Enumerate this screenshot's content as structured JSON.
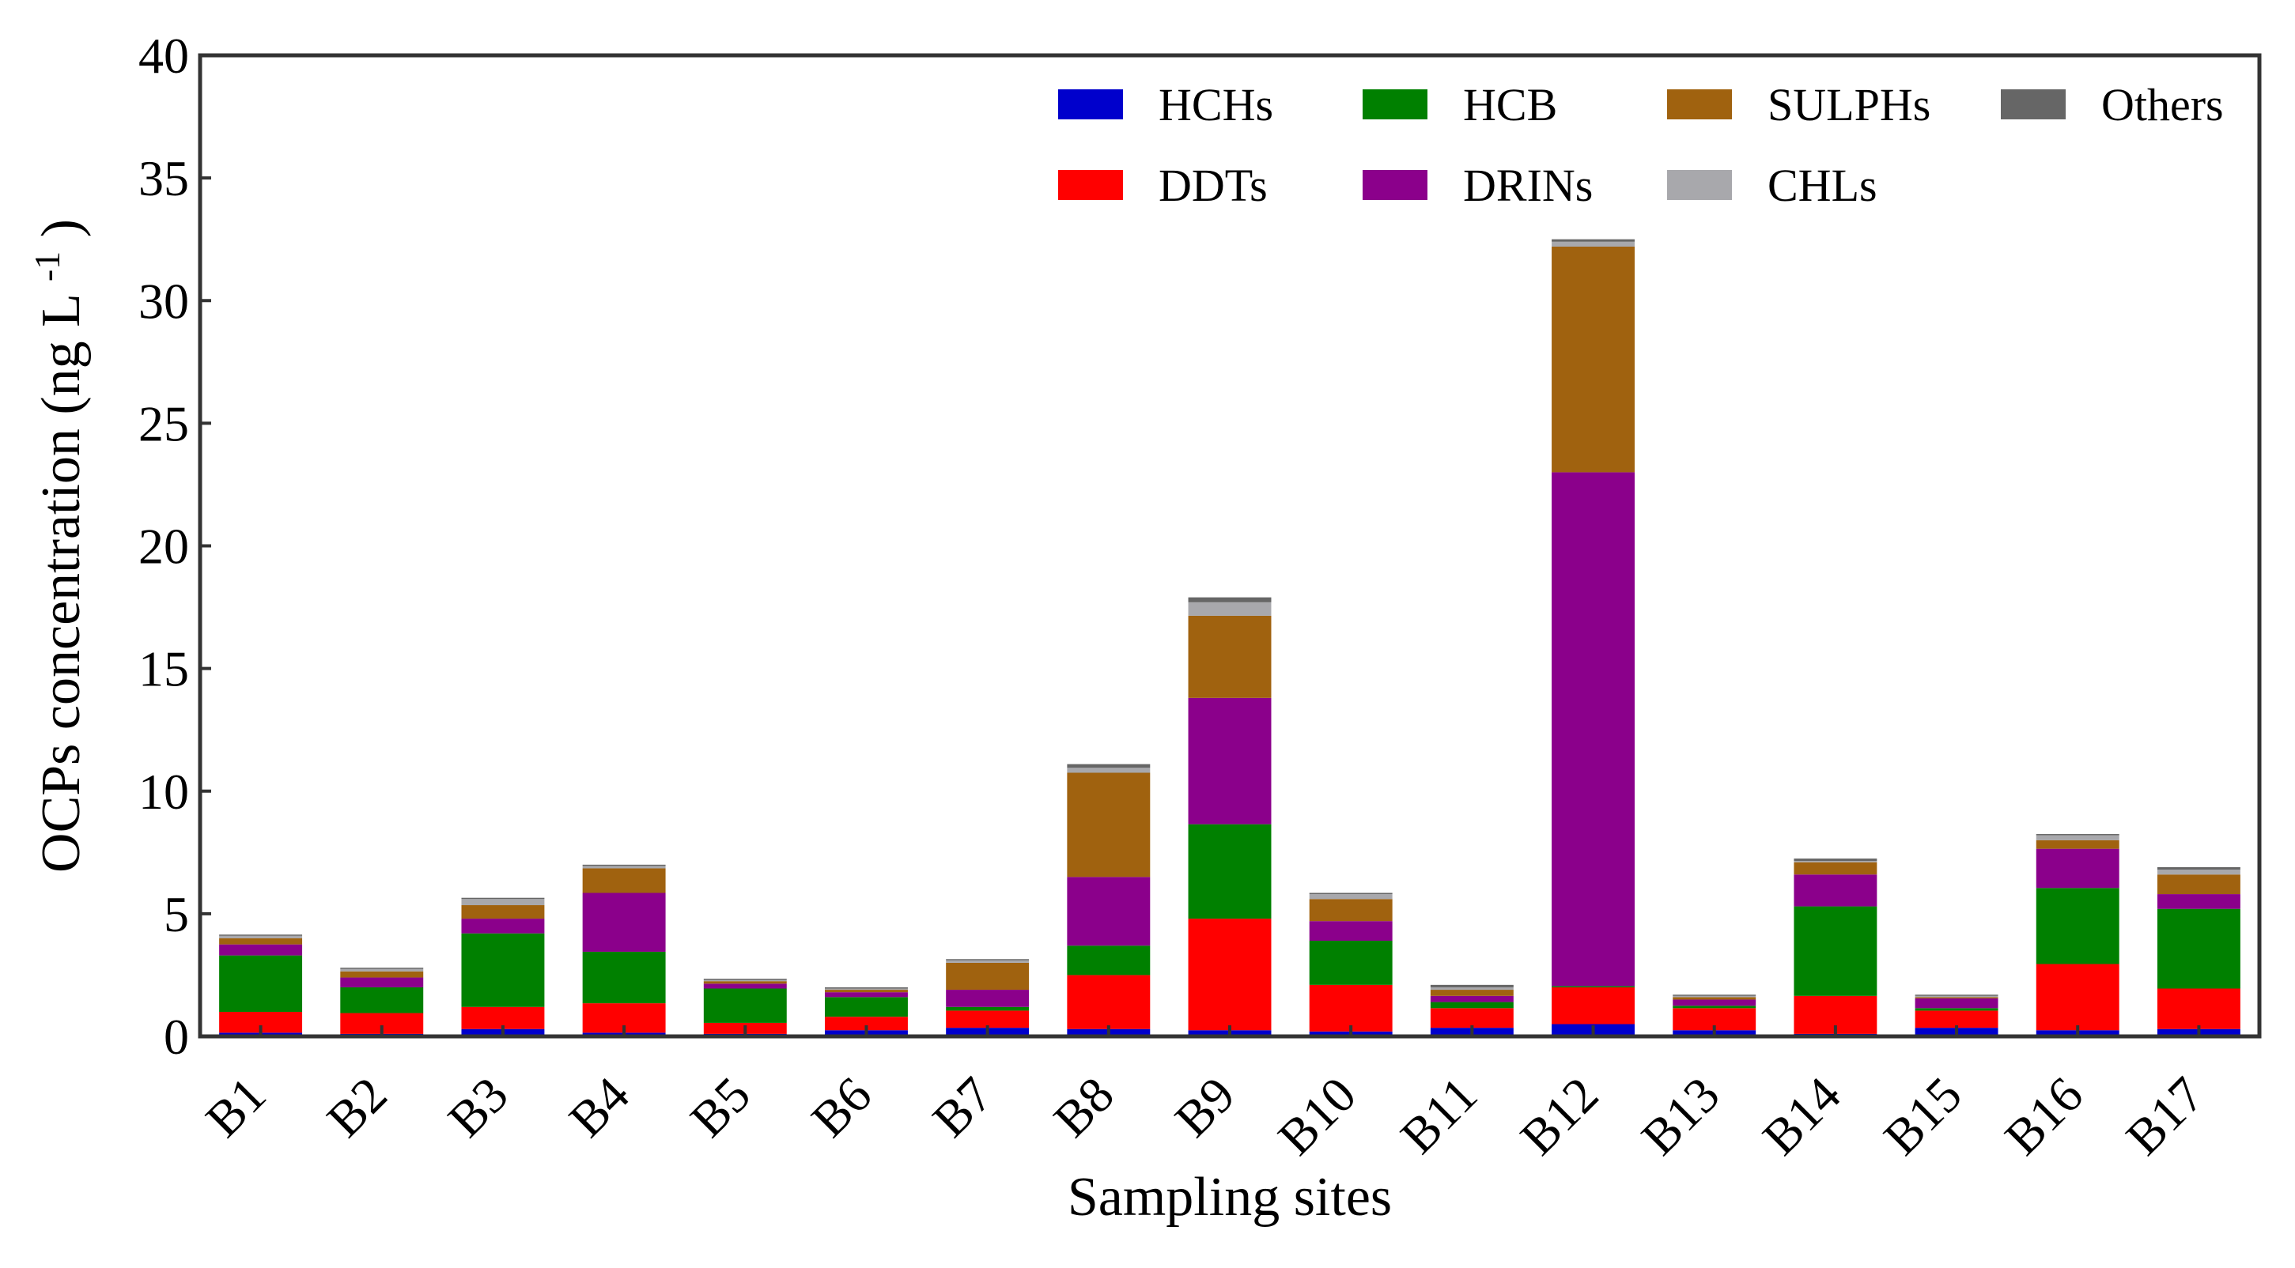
{
  "chart_data": {
    "type": "bar",
    "stacked": true,
    "title": "",
    "xlabel": "Sampling sites",
    "ylabel": "OCPs concentration (ng L",
    "ylabel_superscript": "-1",
    "ylabel_close": ")",
    "ylim": [
      0,
      40
    ],
    "yticks": [
      0,
      5,
      10,
      15,
      20,
      25,
      30,
      35,
      40
    ],
    "grid": false,
    "legend_position": "top-right",
    "categories": [
      "B1",
      "B2",
      "B3",
      "B4",
      "B5",
      "B6",
      "B7",
      "B8",
      "B9",
      "B10",
      "B11",
      "B12",
      "B13",
      "B14",
      "B15",
      "B16",
      "B17"
    ],
    "series": [
      {
        "name": "HCHs",
        "color": "#0000CC",
        "values": [
          0.15,
          0.1,
          0.3,
          0.15,
          0.1,
          0.25,
          0.35,
          0.3,
          0.25,
          0.2,
          0.35,
          0.5,
          0.25,
          0.1,
          0.35,
          0.25,
          0.3
        ]
      },
      {
        "name": "DDTs",
        "color": "#FF0000",
        "values": [
          0.85,
          0.85,
          0.9,
          1.2,
          0.45,
          0.55,
          0.7,
          2.2,
          4.55,
          1.9,
          0.8,
          1.5,
          0.9,
          1.55,
          0.7,
          2.7,
          1.65
        ]
      },
      {
        "name": "HCB",
        "color": "#008000",
        "values": [
          2.3,
          1.05,
          3.0,
          2.1,
          1.4,
          0.8,
          0.15,
          1.2,
          3.85,
          1.8,
          0.25,
          0.05,
          0.1,
          3.65,
          0.1,
          3.1,
          3.25
        ]
      },
      {
        "name": "DRINs",
        "color": "#8B008B",
        "values": [
          0.45,
          0.4,
          0.6,
          2.4,
          0.2,
          0.2,
          0.7,
          2.8,
          5.15,
          0.8,
          0.25,
          20.95,
          0.25,
          1.3,
          0.4,
          1.6,
          0.6
        ]
      },
      {
        "name": "SULPHs",
        "color": "#A0620F",
        "values": [
          0.25,
          0.25,
          0.55,
          1.0,
          0.1,
          0.1,
          1.1,
          4.25,
          3.35,
          0.9,
          0.25,
          9.2,
          0.1,
          0.5,
          0.05,
          0.35,
          0.8
        ]
      },
      {
        "name": "CHLs",
        "color": "#A8A8AC",
        "values": [
          0.1,
          0.1,
          0.25,
          0.1,
          0.05,
          0.05,
          0.1,
          0.2,
          0.55,
          0.2,
          0.1,
          0.2,
          0.05,
          0.05,
          0.05,
          0.2,
          0.2
        ]
      },
      {
        "name": "Others",
        "color": "#666666",
        "values": [
          0.05,
          0.05,
          0.05,
          0.05,
          0.05,
          0.05,
          0.05,
          0.15,
          0.2,
          0.05,
          0.1,
          0.1,
          0.05,
          0.1,
          0.05,
          0.05,
          0.1
        ]
      }
    ],
    "legend_layout": [
      [
        "HCHs",
        "HCB",
        "SULPHs",
        "Others"
      ],
      [
        "DDTs",
        "DRINs",
        "CHLs"
      ]
    ]
  }
}
